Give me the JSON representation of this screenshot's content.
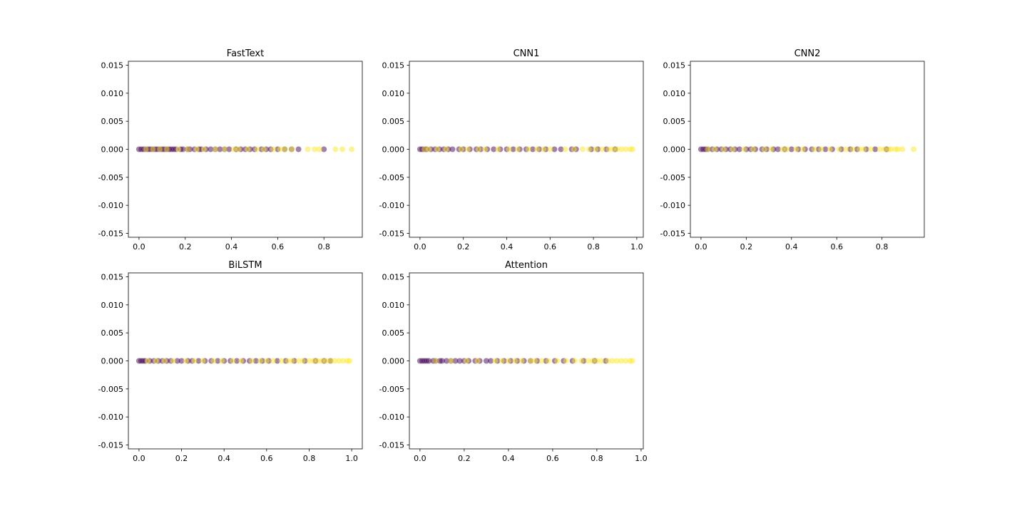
{
  "colors": {
    "class_0": "#440154",
    "class_1": "#fde725",
    "axes_edge": "#000000",
    "background": "#ffffff"
  },
  "chart_data": [
    {
      "type": "scatter",
      "title": "FastText",
      "xlabel": "",
      "ylabel": "",
      "xlim": [
        -0.046,
        0.966
      ],
      "ylim": [
        -0.0157,
        0.0157
      ],
      "xticks": [
        0.0,
        0.2,
        0.4,
        0.6,
        0.8
      ],
      "xtick_labels": [
        "0.0",
        "0.2",
        "0.4",
        "0.6",
        "0.8"
      ],
      "yticks": [
        0.015,
        0.01,
        0.005,
        0.0,
        -0.005,
        -0.01,
        -0.015
      ],
      "ytick_labels": [
        "0.015",
        "0.010",
        "0.005",
        "0.000",
        "-0.005",
        "-0.010",
        "-0.015"
      ],
      "grid": false,
      "marker_alpha": 0.5,
      "series": [
        {
          "class": 0,
          "x": [
            0.0,
            0.01,
            0.02,
            0.03,
            0.04,
            0.05,
            0.06,
            0.07,
            0.08,
            0.09,
            0.1,
            0.11,
            0.12,
            0.13,
            0.14,
            0.15,
            0.16,
            0.18,
            0.19,
            0.21,
            0.22,
            0.24,
            0.26,
            0.27,
            0.29,
            0.31,
            0.33,
            0.35,
            0.37,
            0.39,
            0.42,
            0.44,
            0.46,
            0.48,
            0.5,
            0.53,
            0.55,
            0.57,
            0.6,
            0.63,
            0.66,
            0.69,
            0.8
          ]
        },
        {
          "class": 1,
          "x": [
            0.03,
            0.06,
            0.09,
            0.12,
            0.17,
            0.21,
            0.25,
            0.28,
            0.33,
            0.37,
            0.41,
            0.43,
            0.47,
            0.51,
            0.54,
            0.58,
            0.61,
            0.63,
            0.66,
            0.73,
            0.76,
            0.78,
            0.85,
            0.88,
            0.92
          ]
        }
      ]
    },
    {
      "type": "scatter",
      "title": "CNN1",
      "xlabel": "",
      "ylabel": "",
      "xlim": [
        -0.049,
        1.03
      ],
      "ylim": [
        -0.0157,
        0.0157
      ],
      "xticks": [
        0.0,
        0.2,
        0.4,
        0.6,
        0.8,
        1.0
      ],
      "xtick_labels": [
        "0.0",
        "0.2",
        "0.4",
        "0.6",
        "0.8",
        "1.0"
      ],
      "yticks": [
        0.015,
        0.01,
        0.005,
        0.0,
        -0.005,
        -0.01,
        -0.015
      ],
      "ytick_labels": [
        "0.015",
        "0.010",
        "0.005",
        "0.000",
        "-0.005",
        "-0.010",
        "-0.015"
      ],
      "grid": false,
      "marker_alpha": 0.5,
      "series": [
        {
          "class": 0,
          "x": [
            0.0,
            0.01,
            0.02,
            0.03,
            0.05,
            0.07,
            0.09,
            0.11,
            0.13,
            0.15,
            0.18,
            0.2,
            0.23,
            0.26,
            0.28,
            0.31,
            0.34,
            0.37,
            0.4,
            0.43,
            0.46,
            0.49,
            0.52,
            0.55,
            0.58,
            0.62,
            0.65,
            0.7,
            0.72,
            0.79,
            0.82,
            0.86,
            0.9
          ]
        },
        {
          "class": 1,
          "x": [
            0.02,
            0.04,
            0.08,
            0.12,
            0.19,
            0.22,
            0.27,
            0.3,
            0.36,
            0.41,
            0.45,
            0.5,
            0.54,
            0.57,
            0.6,
            0.67,
            0.71,
            0.75,
            0.78,
            0.81,
            0.84,
            0.87,
            0.89,
            0.91,
            0.93,
            0.95,
            0.97,
            0.98
          ]
        }
      ]
    },
    {
      "type": "scatter",
      "title": "CNN2",
      "xlabel": "",
      "ylabel": "",
      "xlim": [
        -0.047,
        0.987
      ],
      "ylim": [
        -0.0157,
        0.0157
      ],
      "xticks": [
        0.0,
        0.2,
        0.4,
        0.6,
        0.8
      ],
      "xtick_labels": [
        "0.0",
        "0.2",
        "0.4",
        "0.6",
        "0.8"
      ],
      "yticks": [
        0.015,
        0.01,
        0.005,
        0.0,
        -0.005,
        -0.01,
        -0.015
      ],
      "ytick_labels": [
        "0.015",
        "0.010",
        "0.005",
        "0.000",
        "-0.005",
        "-0.010",
        "-0.015"
      ],
      "grid": false,
      "marker_alpha": 0.5,
      "series": [
        {
          "class": 0,
          "x": [
            0.0,
            0.01,
            0.02,
            0.03,
            0.05,
            0.07,
            0.09,
            0.11,
            0.13,
            0.15,
            0.17,
            0.2,
            0.22,
            0.24,
            0.27,
            0.29,
            0.32,
            0.34,
            0.37,
            0.4,
            0.43,
            0.46,
            0.49,
            0.52,
            0.55,
            0.58,
            0.62,
            0.66,
            0.69,
            0.73,
            0.77,
            0.82
          ]
        },
        {
          "class": 1,
          "x": [
            0.03,
            0.06,
            0.1,
            0.14,
            0.19,
            0.23,
            0.28,
            0.31,
            0.36,
            0.38,
            0.42,
            0.45,
            0.5,
            0.53,
            0.57,
            0.61,
            0.64,
            0.67,
            0.7,
            0.72,
            0.75,
            0.79,
            0.81,
            0.83,
            0.84,
            0.86,
            0.87,
            0.89,
            0.94
          ]
        }
      ]
    },
    {
      "type": "scatter",
      "title": "BiLSTM",
      "xlabel": "",
      "ylabel": "",
      "xlim": [
        -0.05,
        1.05
      ],
      "ylim": [
        -0.0157,
        0.0157
      ],
      "xticks": [
        0.0,
        0.2,
        0.4,
        0.6,
        0.8,
        1.0
      ],
      "xtick_labels": [
        "0.0",
        "0.2",
        "0.4",
        "0.6",
        "0.8",
        "1.0"
      ],
      "yticks": [
        0.015,
        0.01,
        0.005,
        0.0,
        -0.005,
        -0.01,
        -0.015
      ],
      "ytick_labels": [
        "0.015",
        "0.010",
        "0.005",
        "0.000",
        "-0.005",
        "-0.010",
        "-0.015"
      ],
      "grid": false,
      "marker_alpha": 0.5,
      "series": [
        {
          "class": 0,
          "x": [
            0.0,
            0.01,
            0.02,
            0.03,
            0.05,
            0.07,
            0.09,
            0.11,
            0.13,
            0.15,
            0.18,
            0.2,
            0.23,
            0.25,
            0.28,
            0.31,
            0.34,
            0.37,
            0.4,
            0.43,
            0.46,
            0.49,
            0.52,
            0.55,
            0.58,
            0.61,
            0.65,
            0.69,
            0.73,
            0.78,
            0.83,
            0.87,
            0.9
          ]
        },
        {
          "class": 1,
          "x": [
            0.04,
            0.08,
            0.12,
            0.16,
            0.22,
            0.26,
            0.3,
            0.35,
            0.39,
            0.44,
            0.48,
            0.53,
            0.57,
            0.6,
            0.63,
            0.67,
            0.7,
            0.72,
            0.75,
            0.77,
            0.8,
            0.82,
            0.84,
            0.86,
            0.88,
            0.9,
            0.92,
            0.94,
            0.96,
            0.98,
            0.99
          ]
        }
      ]
    },
    {
      "type": "scatter",
      "title": "Attention",
      "xlabel": "",
      "ylabel": "",
      "xlim": [
        -0.048,
        1.01
      ],
      "ylim": [
        -0.0157,
        0.0157
      ],
      "xticks": [
        0.0,
        0.2,
        0.4,
        0.6,
        0.8,
        1.0
      ],
      "xtick_labels": [
        "0.0",
        "0.2",
        "0.4",
        "0.6",
        "0.8",
        "1.0"
      ],
      "yticks": [
        0.015,
        0.01,
        0.005,
        0.0,
        -0.005,
        -0.01,
        -0.015
      ],
      "ytick_labels": [
        "0.015",
        "0.010",
        "0.005",
        "0.000",
        "-0.005",
        "-0.010",
        "-0.015"
      ],
      "grid": false,
      "marker_alpha": 0.5,
      "series": [
        {
          "class": 0,
          "x": [
            0.0,
            0.01,
            0.02,
            0.03,
            0.04,
            0.06,
            0.07,
            0.09,
            0.1,
            0.12,
            0.14,
            0.16,
            0.18,
            0.2,
            0.22,
            0.25,
            0.27,
            0.3,
            0.32,
            0.35,
            0.38,
            0.41,
            0.44,
            0.47,
            0.5,
            0.53,
            0.57,
            0.61,
            0.65,
            0.69,
            0.74,
            0.79,
            0.84
          ]
        },
        {
          "class": 1,
          "x": [
            0.07,
            0.14,
            0.21,
            0.26,
            0.34,
            0.37,
            0.4,
            0.43,
            0.46,
            0.5,
            0.52,
            0.55,
            0.58,
            0.62,
            0.66,
            0.7,
            0.73,
            0.76,
            0.78,
            0.8,
            0.82,
            0.85,
            0.87,
            0.89,
            0.91,
            0.93,
            0.95,
            0.96
          ]
        }
      ]
    }
  ]
}
